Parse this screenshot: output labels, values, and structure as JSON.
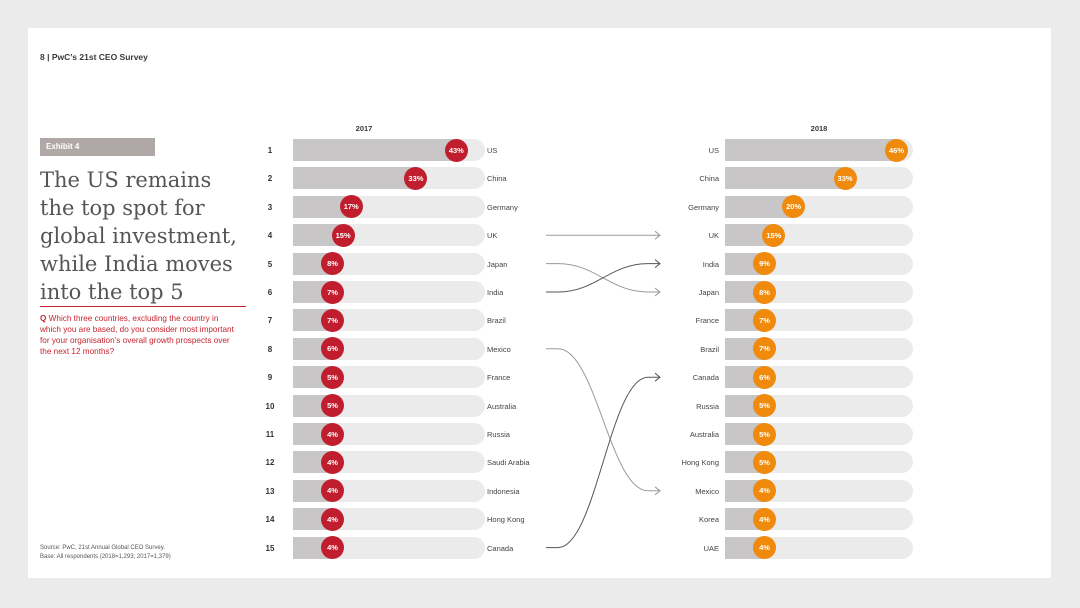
{
  "header": {
    "text": "8  |  PwC’s 21st CEO Survey"
  },
  "exhibit": {
    "label": "Exhibit 4"
  },
  "title": [
    "The US remains",
    "the top spot for",
    "global investment,",
    "while India moves",
    "into the top 5"
  ],
  "question": {
    "prefix": "Q",
    "text": "Which three countries, excluding the country in which you are based, do you consider most important for your organisation’s overall growth prospects over the next 12 months?"
  },
  "source": {
    "line1": "Source: PwC, 21st Annual Global CEO Survey.",
    "line2": "Base: All respondents (2018=1,293; 2017=1,379)"
  },
  "colors": {
    "y2017": "#c01e2e",
    "y2018": "#ef8a0d",
    "bar_fill": "#c8c6c6",
    "track": "#ebebeb"
  },
  "chart_data": {
    "type": "bar",
    "ranks": [
      1,
      2,
      3,
      4,
      5,
      6,
      7,
      8,
      9,
      10,
      11,
      12,
      13,
      14,
      15
    ],
    "series": [
      {
        "name": "2017",
        "categories": [
          "US",
          "China",
          "Germany",
          "UK",
          "Japan",
          "India",
          "Brazil",
          "Mexico",
          "France",
          "Australia",
          "Russia",
          "Saudi Arabia",
          "Indonesia",
          "Hong Kong",
          "Canada"
        ],
        "values": [
          43,
          33,
          17,
          15,
          8,
          7,
          7,
          6,
          5,
          5,
          4,
          4,
          4,
          4,
          4
        ],
        "labels": [
          "43%",
          "33%",
          "17%",
          "15%",
          "8%",
          "7%",
          "7%",
          "6%",
          "5%",
          "5%",
          "4%",
          "4%",
          "4%",
          "4%",
          "4%"
        ]
      },
      {
        "name": "2018",
        "categories": [
          "US",
          "China",
          "Germany",
          "UK",
          "India",
          "Japan",
          "France",
          "Brazil",
          "Canada",
          "Russia",
          "Australia",
          "Hong Kong",
          "Mexico",
          "Korea",
          "UAE"
        ],
        "values": [
          46,
          33,
          20,
          15,
          9,
          8,
          7,
          7,
          6,
          5,
          5,
          5,
          4,
          4,
          4
        ],
        "labels": [
          "46%",
          "33%",
          "20%",
          "15%",
          "9%",
          "8%",
          "7%",
          "7%",
          "6%",
          "5%",
          "5%",
          "5%",
          "4%",
          "4%",
          "4%"
        ]
      }
    ],
    "movers": [
      {
        "country": "UK",
        "from_rank": 4,
        "to_rank": 4
      },
      {
        "country": "Japan",
        "from_rank": 5,
        "to_rank": 6
      },
      {
        "country": "India",
        "from_rank": 6,
        "to_rank": 5
      },
      {
        "country": "Mexico",
        "from_rank": 8,
        "to_rank": 13
      },
      {
        "country": "Canada",
        "from_rank": 15,
        "to_rank": 9
      }
    ],
    "xlim": [
      0,
      46
    ],
    "legend": "none",
    "grid": false
  }
}
